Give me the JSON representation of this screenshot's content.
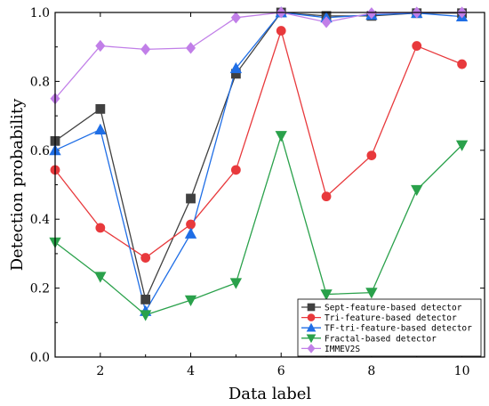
{
  "chart_data": {
    "type": "line",
    "xlabel": "Data label",
    "ylabel": "Detection probability",
    "xlim": [
      1,
      10.5
    ],
    "ylim": [
      0,
      1.0
    ],
    "xticks": [
      2,
      4,
      6,
      8,
      10
    ],
    "yticks": [
      0.0,
      0.2,
      0.4,
      0.6,
      0.8,
      1.0
    ],
    "x": [
      1,
      2,
      3,
      4,
      5,
      6,
      7,
      8,
      9,
      10
    ],
    "legend_position": "bottom-right",
    "series": [
      {
        "name": "Sept-feature-based detector",
        "color": "#404040",
        "marker": "square",
        "values": [
          0.627,
          0.72,
          0.167,
          0.46,
          0.822,
          1.0,
          0.99,
          0.99,
          0.998,
          0.998
        ]
      },
      {
        "name": "Tri-feature-based detector",
        "color": "#e8393c",
        "marker": "circle",
        "values": [
          0.543,
          0.375,
          0.288,
          0.385,
          0.543,
          0.947,
          0.466,
          0.585,
          0.903,
          0.85
        ]
      },
      {
        "name": "TF-tri-feature-based detector",
        "color": "#1f6ee6",
        "marker": "triangle-up",
        "values": [
          0.6,
          0.66,
          0.133,
          0.358,
          0.838,
          1.0,
          0.985,
          0.993,
          0.998,
          0.988
        ]
      },
      {
        "name": "Fractal-based detector",
        "color": "#2aa14b",
        "marker": "triangle-down",
        "values": [
          0.333,
          0.233,
          0.122,
          0.165,
          0.215,
          0.642,
          0.182,
          0.187,
          0.485,
          0.615
        ]
      },
      {
        "name": "IMMEV2S",
        "color": "#c17fe8",
        "marker": "diamond",
        "values": [
          0.75,
          0.903,
          0.893,
          0.897,
          0.985,
          1.0,
          0.972,
          0.998,
          1.0,
          1.0
        ]
      }
    ]
  }
}
